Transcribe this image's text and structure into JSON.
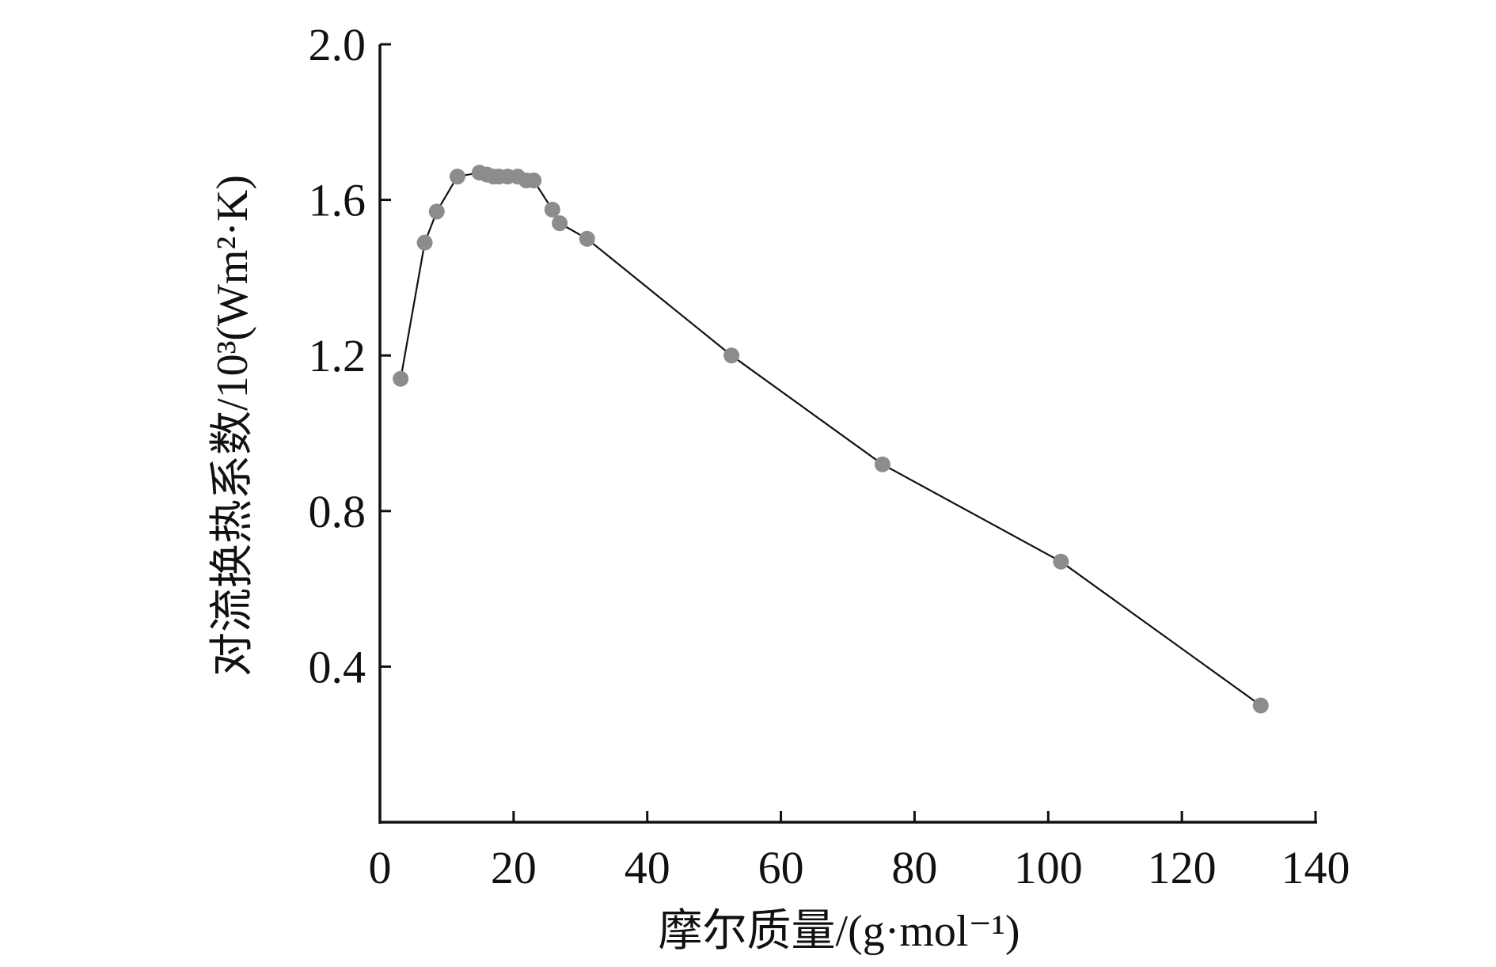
{
  "chart_data": {
    "type": "line",
    "xlabel": "摩尔质量/(g·mol⁻¹)",
    "ylabel": "对流换热系数/10³(Wm²·K)",
    "xlim": [
      0,
      140
    ],
    "ylim": [
      0,
      2.0
    ],
    "x_ticks": [
      0,
      20,
      40,
      60,
      80,
      100,
      120,
      140
    ],
    "x_tick_labels": [
      "0",
      "20",
      "40",
      "60",
      "80",
      "100",
      "120",
      "140"
    ],
    "y_ticks": [
      0.4,
      0.8,
      1.2,
      1.6,
      2.0
    ],
    "y_tick_labels": [
      "0.4",
      "0.8",
      "1.2",
      "1.6",
      "2.0"
    ],
    "grid": false,
    "legend": "none",
    "series": [
      {
        "marker_color": "#8c8c8c",
        "line_color": "#111111",
        "x": [
          3.1,
          6.7,
          8.5,
          11.6,
          14.9,
          16.0,
          17.0,
          17.8,
          19.1,
          20.6,
          21.9,
          23.0,
          25.8,
          26.9,
          31.0,
          52.6,
          75.2,
          101.9,
          131.8
        ],
        "y": [
          1.14,
          1.49,
          1.57,
          1.66,
          1.67,
          1.665,
          1.66,
          1.66,
          1.66,
          1.66,
          1.65,
          1.65,
          1.575,
          1.54,
          1.5,
          1.2,
          0.92,
          0.67,
          0.3
        ]
      }
    ]
  }
}
